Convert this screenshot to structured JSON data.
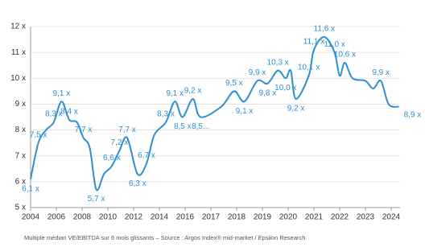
{
  "chart_data": {
    "type": "line",
    "footnote": "Multiple médian VE/EBITDA sur 6 mois glissants – Source : Argos Index® mid-market / Epsilon Research",
    "x": [
      2004.0,
      2004.6,
      2005.2,
      2005.8,
      2006.4,
      2007.0,
      2007.6,
      2008.1,
      2008.6,
      2009.1,
      2009.7,
      2010.3,
      2010.9,
      2011.5,
      2012.3,
      2013.0,
      2013.6,
      2014.5,
      2015.2,
      2015.8,
      2016.3,
      2016.6,
      2017.4,
      2017.9,
      2018.3,
      2018.8,
      2019.2,
      2019.6,
      2019.9,
      2020.1,
      2020.3,
      2020.8,
      2021.0,
      2021.4,
      2021.8,
      2022.0,
      2022.2,
      2022.5,
      2023.0,
      2023.3,
      2023.6,
      2023.9,
      2024.3
    ],
    "series": [
      {
        "color": "#2e8fd0",
        "values": [
          6.1,
          7.5,
          8.0,
          8.3,
          9.1,
          8.4,
          8.3,
          7.7,
          7.3,
          5.7,
          6.3,
          6.6,
          7.2,
          7.7,
          6.3,
          6.7,
          7.8,
          8.3,
          9.1,
          8.5,
          9.2,
          8.5,
          8.9,
          9.5,
          9.1,
          9.9,
          9.8,
          10.3,
          10.0,
          10.3,
          9.2,
          10.1,
          11.1,
          11.6,
          11.0,
          10.1,
          10.6,
          10.0,
          9.9,
          9.6,
          9.9,
          9.0,
          8.9
        ],
        "value_labels": [
          "6,1 x",
          "7,5 x",
          null,
          "8,3 x",
          "9,1 x",
          "8,4 x",
          null,
          "7,7 x",
          null,
          "5,7 x",
          null,
          "6,6 x",
          "7,2 x",
          "7,7 x",
          "6,3 x",
          "6,7 x",
          null,
          "8,3 x",
          "9,1 x",
          "8,5 x",
          "9,2 x",
          "8,5...",
          null,
          "9,5 x",
          "9,1 x",
          "9,9 x",
          "9,8 x",
          "10,3 x",
          "10,0 x",
          null,
          "9,2 x",
          "10,1 x",
          "11,1 x",
          "11,6 x",
          "11,0 x",
          null,
          "10,6 x",
          null,
          null,
          null,
          "9,9 x",
          null,
          "8,9 x"
        ]
      }
    ],
    "xlim": [
      2004,
      2024.4
    ],
    "xticks": [
      2004,
      2006,
      2008,
      2010,
      2012,
      2014,
      2016,
      2017,
      2018,
      2019,
      2020,
      2021,
      2022,
      2023,
      2024
    ],
    "ylim": [
      5,
      12
    ],
    "yticks": [
      {
        "value": 5,
        "label": "5 x"
      },
      {
        "value": 6,
        "label": "6 x"
      },
      {
        "value": 7,
        "label": "7 x"
      },
      {
        "value": 8,
        "label": "8 x"
      },
      {
        "value": 9,
        "label": "9 x"
      },
      {
        "value": 10,
        "label": "10 x"
      },
      {
        "value": 11,
        "label": "11 x"
      },
      {
        "value": 12,
        "label": "12 x"
      }
    ],
    "grid": true
  }
}
